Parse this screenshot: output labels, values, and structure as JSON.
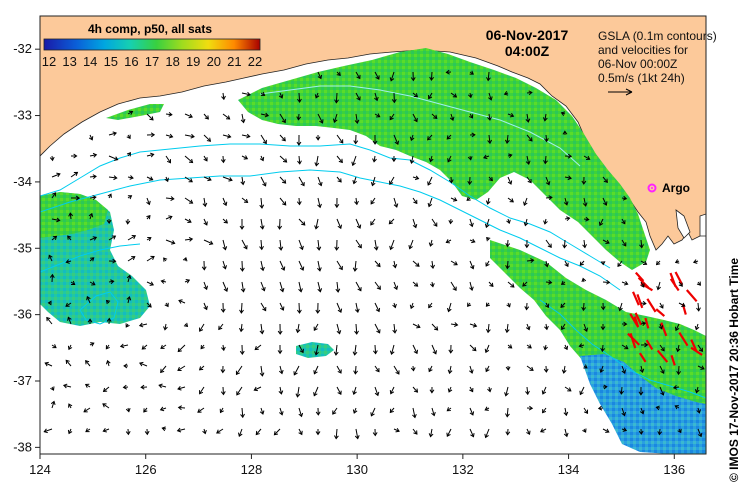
{
  "legend": {
    "title": "4h comp, p50, all sats",
    "scale_min": 12,
    "scale_max": 22,
    "scale_labels": [
      "12",
      "13",
      "14",
      "15",
      "16",
      "17",
      "18",
      "19",
      "20",
      "21",
      "22"
    ]
  },
  "date_title": {
    "date": "06-Nov-2017",
    "time": "04:00Z"
  },
  "info": {
    "line1": "GSLA (0.1m contours)",
    "line2": "and velocities for",
    "line3": "06-Nov 00:00Z",
    "line4": "0.5m/s (1kt 24h)"
  },
  "argo": {
    "label": "Argo",
    "lon": 135.5,
    "lat": -33.9,
    "color": "#ff22ff"
  },
  "credit": "© IMOS 17-Nov-2017 20:36 Hobart Time",
  "axes": {
    "lon_range": [
      124,
      136.6
    ],
    "lat_range": [
      -38.1,
      -31.5
    ],
    "lon_ticks": [
      "124",
      "126",
      "128",
      "130",
      "132",
      "134",
      "136"
    ],
    "lat_ticks": [
      "-32",
      "-33",
      "-34",
      "-35",
      "-36",
      "-37",
      "-38"
    ]
  },
  "colors": {
    "land": "#fcc99a",
    "ocean": "#ffffff",
    "contour": "#00ccee",
    "arrow": "#000000",
    "argo_vectors": "#ee0000"
  }
}
